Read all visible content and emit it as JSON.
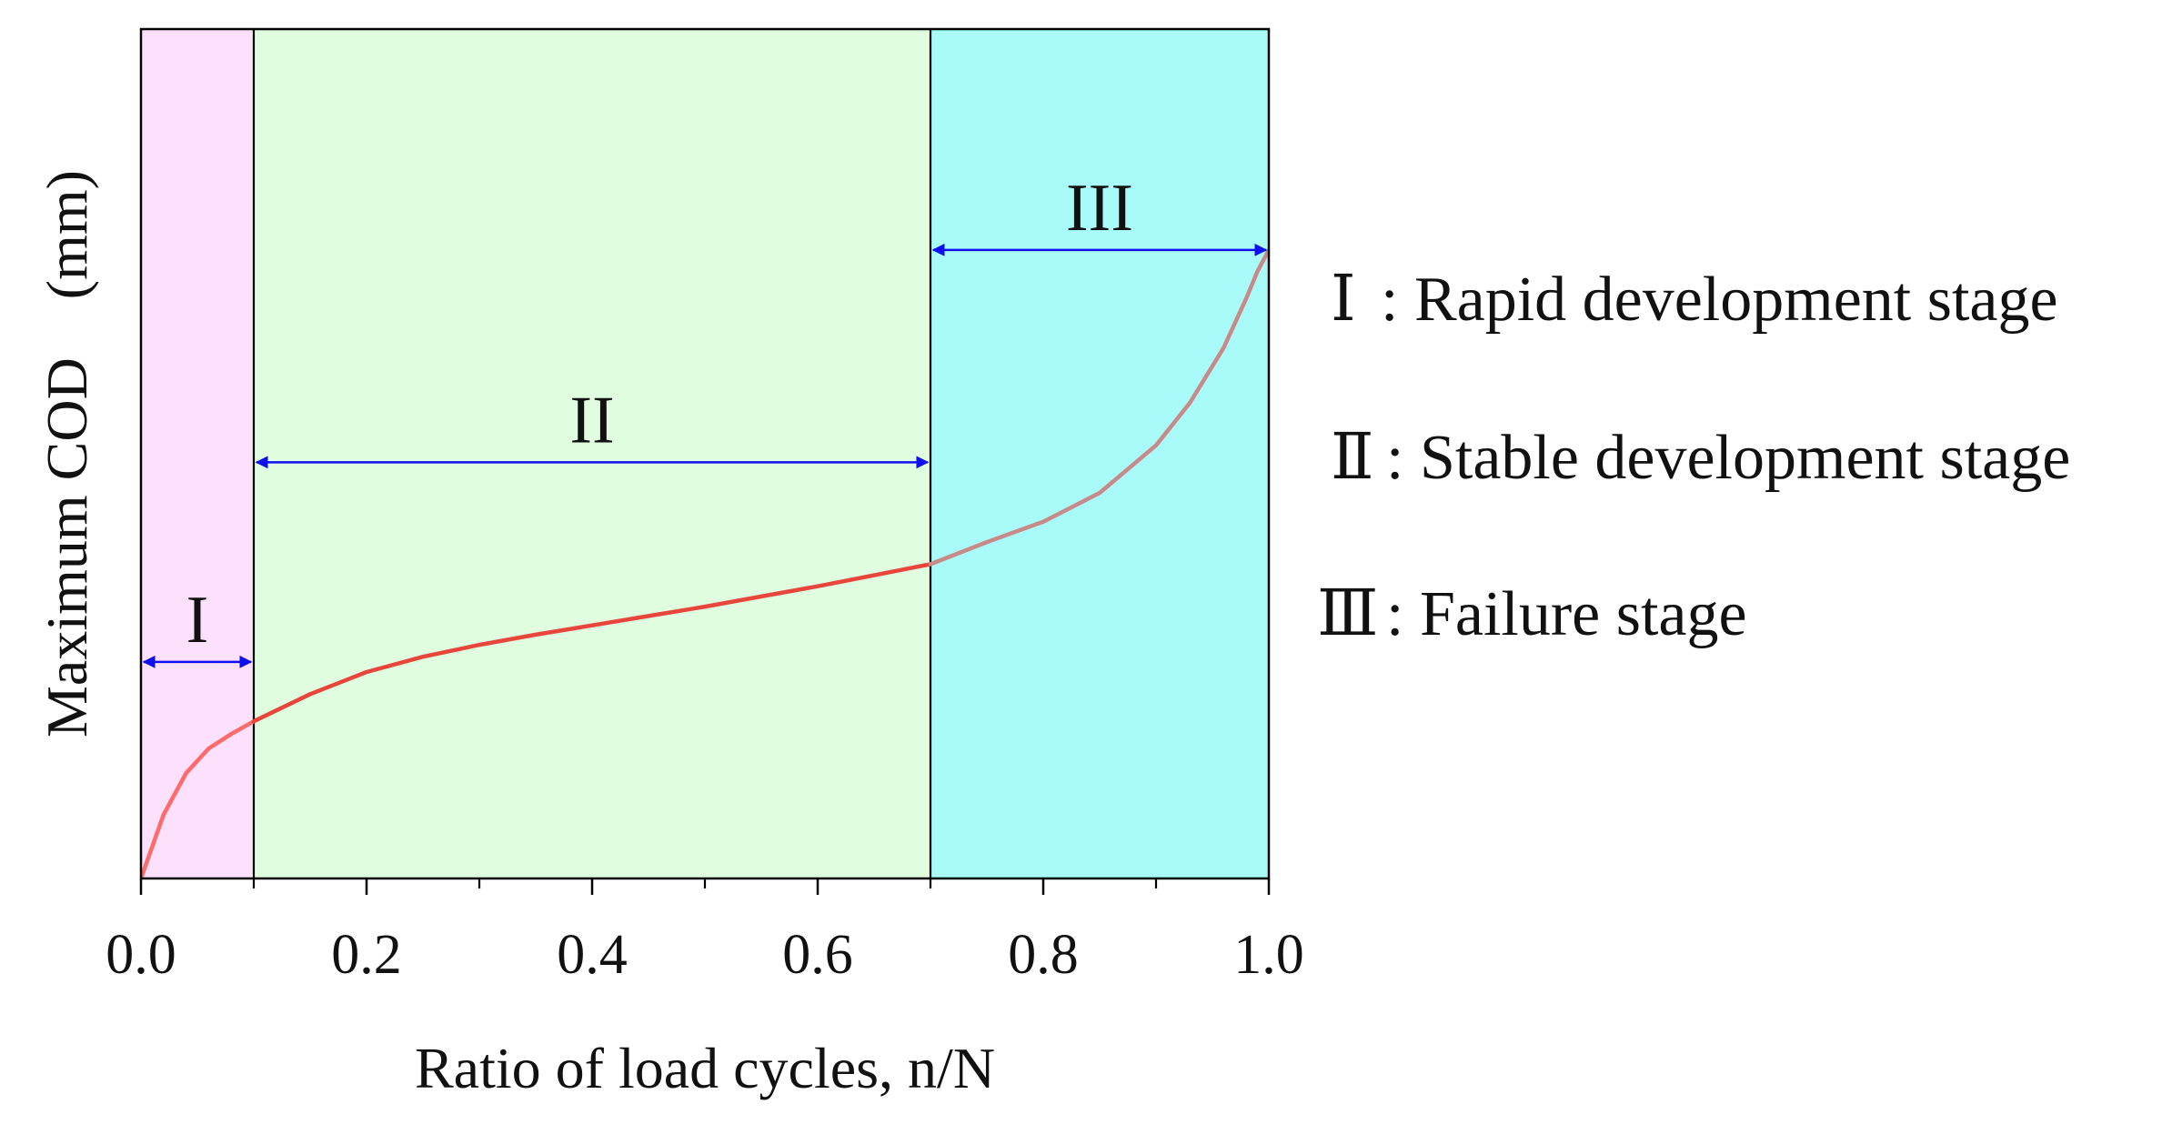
{
  "chart_data": {
    "type": "line",
    "xlabel": "Ratio of load cycles, n/N",
    "ylabel": "Maximum COD　(mm)",
    "xlim": [
      0.0,
      1.0
    ],
    "ylim": [
      0,
      100
    ],
    "y_tick_labels_shown": false,
    "x_ticks": [
      0.0,
      0.2,
      0.4,
      0.6,
      0.8,
      1.0
    ],
    "x_tick_labels": [
      "0.0",
      "0.2",
      "0.4",
      "0.6",
      "0.8",
      "1.0"
    ],
    "x_minor_ticks": [
      0.1,
      0.3,
      0.5,
      0.7,
      0.9
    ],
    "series": [
      {
        "color": "#e8463c",
        "x": [
          0.0,
          0.02,
          0.04,
          0.06,
          0.08,
          0.1,
          0.15,
          0.2,
          0.25,
          0.3,
          0.35,
          0.4,
          0.45,
          0.5,
          0.55,
          0.6,
          0.65,
          0.7,
          0.75,
          0.8,
          0.85,
          0.9,
          0.93,
          0.96,
          0.98,
          0.99,
          1.0
        ],
        "y": [
          0,
          7.5,
          12.4,
          15.3,
          17.0,
          18.5,
          21.7,
          24.3,
          26.1,
          27.5,
          28.7,
          29.8,
          30.9,
          32.0,
          33.2,
          34.4,
          35.7,
          37.0,
          39.6,
          42.0,
          45.4,
          51.0,
          56.0,
          62.5,
          68.3,
          71.5,
          74.0
        ]
      }
    ],
    "regions": [
      {
        "label": "I",
        "from": 0.0,
        "to": 0.1,
        "color": "#fde0fb"
      },
      {
        "label": "II",
        "from": 0.1,
        "to": 0.7,
        "color": "#e0fde0"
      },
      {
        "label": "III",
        "from": 0.7,
        "to": 1.0,
        "color": "#a8fbf9"
      }
    ],
    "arrows": [
      {
        "label": "I",
        "from": 0.0,
        "to": 0.1,
        "y": 25.5
      },
      {
        "label": "II",
        "from": 0.1,
        "to": 0.7,
        "y": 49.0
      },
      {
        "label": "III",
        "from": 0.7,
        "to": 1.0,
        "y": 74.0
      }
    ],
    "legend": [
      {
        "numeral": "Ⅰ",
        "text": ": Rapid development stage"
      },
      {
        "numeral": "Ⅱ",
        "text": ": Stable development stage"
      },
      {
        "numeral": "Ⅲ",
        "text": ": Failure stage"
      }
    ],
    "colors": {
      "arrow": "#1010ee",
      "frame": "#000000"
    }
  }
}
